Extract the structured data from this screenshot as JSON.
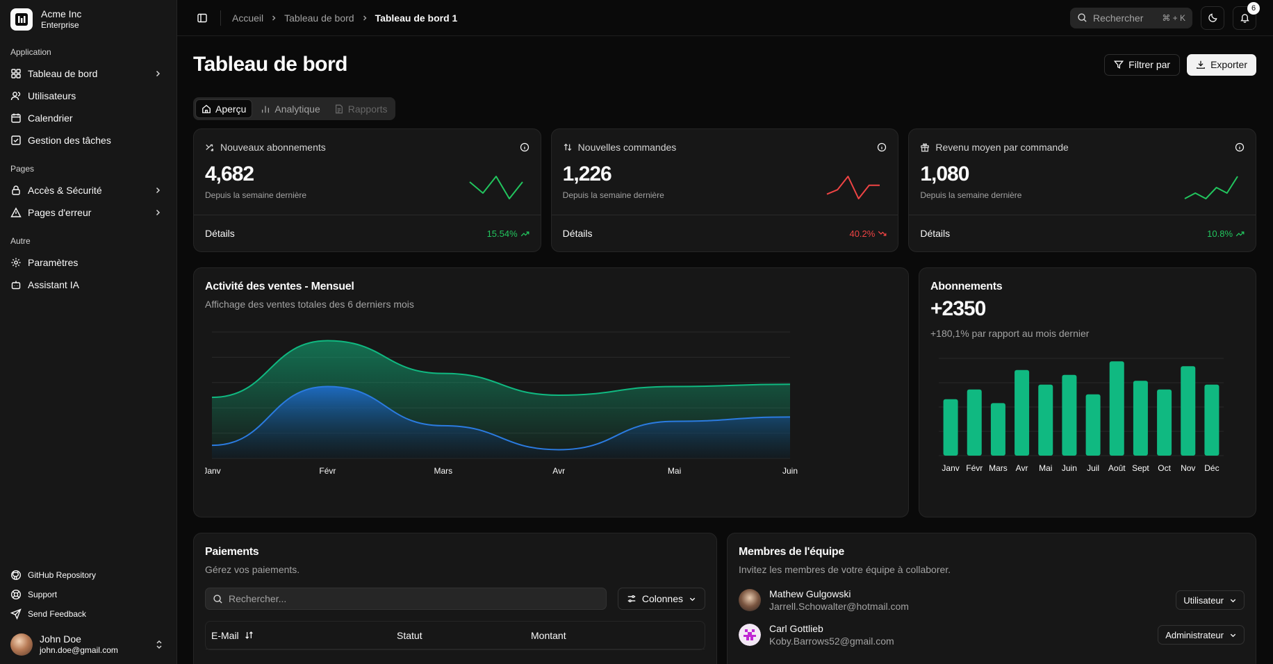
{
  "brand": {
    "name": "Acme Inc",
    "plan": "Enterprise"
  },
  "sidebar": {
    "groups": [
      {
        "label": "Application",
        "items": [
          {
            "label": "Tableau de bord",
            "icon": "layout-grid-icon",
            "has_children": true
          },
          {
            "label": "Utilisateurs",
            "icon": "users-icon",
            "has_children": false
          },
          {
            "label": "Calendrier",
            "icon": "calendar-icon",
            "has_children": false
          },
          {
            "label": "Gestion des tâches",
            "icon": "square-check-icon",
            "has_children": false
          }
        ]
      },
      {
        "label": "Pages",
        "items": [
          {
            "label": "Accès & Sécurité",
            "icon": "lock-icon",
            "has_children": true
          },
          {
            "label": "Pages d'erreur",
            "icon": "alert-triangle-icon",
            "has_children": true
          }
        ]
      },
      {
        "label": "Autre",
        "items": [
          {
            "label": "Paramètres",
            "icon": "gear-icon",
            "has_children": false
          },
          {
            "label": "Assistant IA",
            "icon": "bot-icon",
            "has_children": false
          }
        ]
      }
    ],
    "footer": [
      {
        "label": "GitHub Repository",
        "icon": "github-icon"
      },
      {
        "label": "Support",
        "icon": "lifebuoy-icon"
      },
      {
        "label": "Send Feedback",
        "icon": "send-icon"
      }
    ],
    "user": {
      "name": "John Doe",
      "email": "john.doe@gmail.com"
    }
  },
  "topbar": {
    "breadcrumbs": [
      "Accueil",
      "Tableau de bord",
      "Tableau de bord 1"
    ],
    "search_label": "Rechercher",
    "search_shortcut": "⌘ + K",
    "notification_count": "6"
  },
  "page": {
    "title": "Tableau de bord",
    "filter_label": "Filtrer par",
    "export_label": "Exporter",
    "tabs": [
      {
        "label": "Aperçu",
        "state": "active"
      },
      {
        "label": "Analytique",
        "state": "normal"
      },
      {
        "label": "Rapports",
        "state": "disabled"
      }
    ]
  },
  "kpis": [
    {
      "label": "Nouveaux abonnements",
      "value": "4,682",
      "sub": "Depuis la semaine dernière",
      "details": "Détails",
      "trend": "15.54%",
      "direction": "up",
      "color": "#22c55e",
      "spark": [
        3,
        1,
        4,
        0,
        3
      ]
    },
    {
      "label": "Nouvelles commandes",
      "value": "1,226",
      "sub": "Depuis la semaine dernière",
      "details": "Détails",
      "trend": "40.2%",
      "direction": "down",
      "color": "#ef4444",
      "spark": [
        1,
        2,
        5,
        0,
        3,
        3
      ]
    },
    {
      "label": "Revenu moyen par commande",
      "value": "1,080",
      "sub": "Depuis la semaine dernière",
      "details": "Détails",
      "trend": "10.8%",
      "direction": "up",
      "color": "#22c55e",
      "spark": [
        0,
        1,
        0,
        2,
        1,
        4
      ]
    }
  ],
  "sales": {
    "title": "Activité des ventes - Mensuel",
    "subtitle": "Affichage des ventes totales des 6 derniers mois"
  },
  "subscriptions": {
    "title": "Abonnements",
    "value": "+2350",
    "subtitle": "+180,1% par rapport au mois dernier"
  },
  "payments": {
    "title": "Paiements",
    "subtitle": "Gérez vos paiements.",
    "search_placeholder": "Rechercher...",
    "columns_label": "Colonnes",
    "headers": [
      "E-Mail",
      "Statut",
      "Montant"
    ]
  },
  "team": {
    "title": "Membres de l'équipe",
    "subtitle": "Invitez les membres de votre équipe à collaborer.",
    "members": [
      {
        "name": "Mathew Gulgowski",
        "email": "Jarrell.Schowalter@hotmail.com",
        "role": "Utilisateur"
      },
      {
        "name": "Carl Gottlieb",
        "email": "Koby.Barrows52@gmail.com",
        "role": "Administrateur"
      }
    ]
  },
  "chart_data": [
    {
      "type": "area",
      "categories": [
        "Janv",
        "Févr",
        "Mars",
        "Avr",
        "Mai",
        "Juin"
      ],
      "series": [
        {
          "values": [
            280,
            540,
            390,
            290,
            330,
            340
          ],
          "color": "#10b981"
        },
        {
          "values": [
            60,
            330,
            150,
            40,
            170,
            190
          ],
          "color": "#2b7be0"
        }
      ],
      "ylim": [
        0,
        580
      ],
      "grid": true
    },
    {
      "type": "bar",
      "categories": [
        "Janv",
        "Févr",
        "Mars",
        "Avr",
        "Mai",
        "Juin",
        "Juil",
        "Août",
        "Sept",
        "Oct",
        "Nov",
        "Déc"
      ],
      "values": [
        58,
        68,
        54,
        88,
        73,
        83,
        63,
        97,
        77,
        68,
        92,
        73
      ],
      "ylim": [
        0,
        100
      ],
      "color": "#10b981",
      "grid": true
    }
  ]
}
